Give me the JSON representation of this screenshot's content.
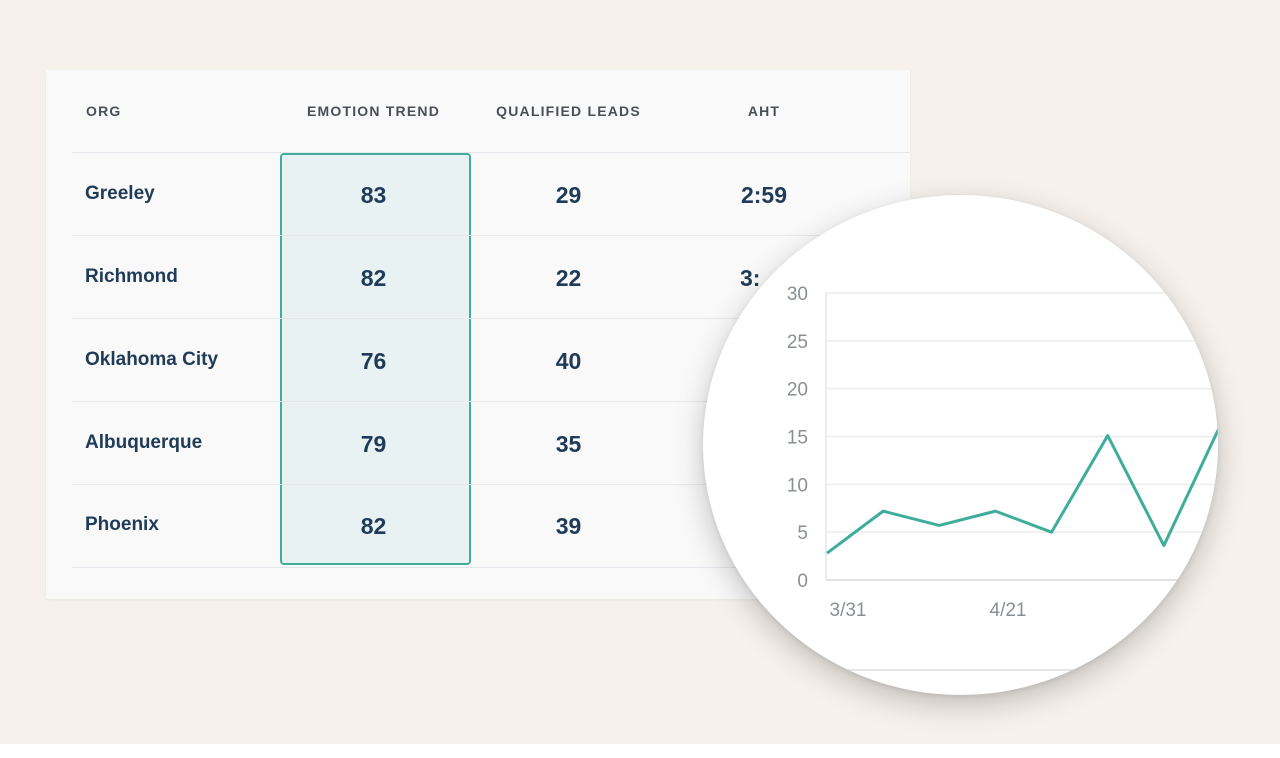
{
  "table": {
    "headers": {
      "org": "ORG",
      "emotion_trend": "EMOTION TREND",
      "qualified_leads": "QUALIFIED LEADS",
      "aht": "AHT"
    },
    "rows": [
      {
        "org": "Greeley",
        "emotion_trend": "83",
        "qualified_leads": "29",
        "aht": "2:59"
      },
      {
        "org": "Richmond",
        "emotion_trend": "82",
        "qualified_leads": "22",
        "aht": "3:"
      },
      {
        "org": "Oklahoma City",
        "emotion_trend": "76",
        "qualified_leads": "40",
        "aht": ""
      },
      {
        "org": "Albuquerque",
        "emotion_trend": "79",
        "qualified_leads": "35",
        "aht": ""
      },
      {
        "org": "Phoenix",
        "emotion_trend": "82",
        "qualified_leads": "39",
        "aht": ""
      }
    ],
    "highlight_color": "#3fad9c",
    "text_color": "#1f3b57"
  },
  "chart_data": {
    "type": "line",
    "x_tick_labels": [
      "3/31",
      "4/21"
    ],
    "y_ticks": [
      0,
      5,
      10,
      15,
      20,
      25,
      30
    ],
    "ylim": [
      0,
      30
    ],
    "grid": true,
    "series": [
      {
        "values": [
          2.8,
          7.2,
          5.7,
          7.2,
          5.0,
          15.1,
          3.6,
          16.1
        ],
        "color": "#3fad9c"
      }
    ]
  }
}
